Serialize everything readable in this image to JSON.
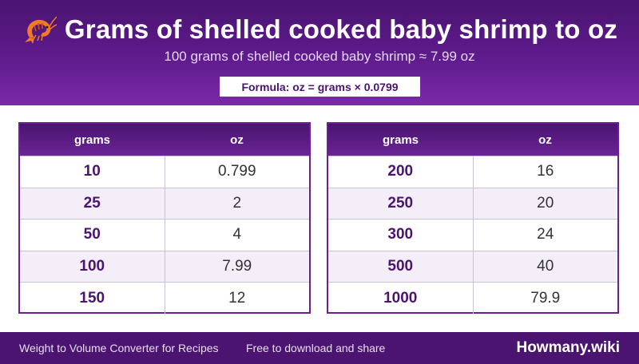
{
  "header": {
    "title": "Grams of shelled cooked baby shrimp to oz",
    "subtitle": "100 grams of shelled cooked baby shrimp ≈ 7.99 oz",
    "formula": "Formula: oz = grams × 0.0799",
    "icon": "shrimp-icon"
  },
  "tables": [
    {
      "headers": [
        "grams",
        "oz"
      ],
      "rows": [
        {
          "grams": "10",
          "oz": "0.799"
        },
        {
          "grams": "25",
          "oz": "2"
        },
        {
          "grams": "50",
          "oz": "4"
        },
        {
          "grams": "100",
          "oz": "7.99"
        },
        {
          "grams": "150",
          "oz": "12"
        }
      ]
    },
    {
      "headers": [
        "grams",
        "oz"
      ],
      "rows": [
        {
          "grams": "200",
          "oz": "16"
        },
        {
          "grams": "250",
          "oz": "20"
        },
        {
          "grams": "300",
          "oz": "24"
        },
        {
          "grams": "500",
          "oz": "40"
        },
        {
          "grams": "1000",
          "oz": "79.9"
        }
      ]
    }
  ],
  "footer": {
    "left": "Weight to Volume Converter for Recipes",
    "middle": "Free to download and share",
    "brand": "Howmany.wiki"
  },
  "colors": {
    "primary": "#4a1470",
    "accent": "#7a2aa8",
    "shrimp": "#f07a2a"
  }
}
